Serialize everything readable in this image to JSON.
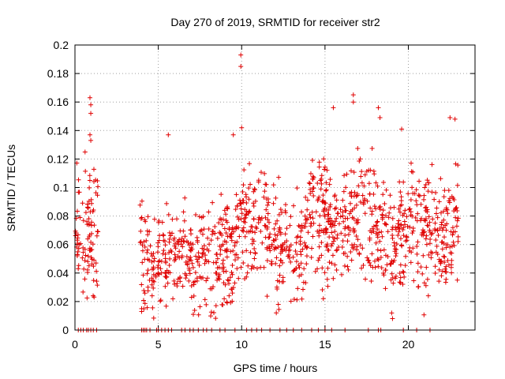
{
  "chart_data": {
    "type": "scatter",
    "title": "Day 270 of 2019, SRMTID for receiver str2",
    "xlabel": "GPS time / hours",
    "ylabel": "SRMTID / TECUs",
    "xlim": [
      0,
      24
    ],
    "ylim": [
      0,
      0.2
    ],
    "grid": true,
    "marker": "+",
    "color": "#e00000",
    "x_ticks": [
      0,
      5,
      10,
      15,
      20
    ],
    "x_tick_labels": [
      "0",
      "5",
      "10",
      "15",
      "20"
    ],
    "y_ticks": [
      0,
      0.02,
      0.04,
      0.06,
      0.08,
      0.1,
      0.12,
      0.14,
      0.16,
      0.18,
      0.2
    ],
    "y_tick_labels": [
      "0",
      "0.02",
      "0.04",
      "0.06",
      "0.08",
      "0.1",
      "0.12",
      "0.14",
      "0.16",
      "0.18",
      "0.2"
    ],
    "segments": [
      {
        "x_start": 0.0,
        "x_end": 1.4,
        "median": 0.065,
        "spread": 0.022,
        "density": 70
      },
      {
        "x_start": 3.9,
        "x_end": 9.6,
        "median": 0.052,
        "spread": 0.018,
        "density": 60
      },
      {
        "x_start": 9.6,
        "x_end": 11.5,
        "median": 0.078,
        "spread": 0.02,
        "density": 60
      },
      {
        "x_start": 11.5,
        "x_end": 14.0,
        "median": 0.058,
        "spread": 0.017,
        "density": 60
      },
      {
        "x_start": 14.0,
        "x_end": 18.5,
        "median": 0.078,
        "spread": 0.02,
        "density": 65
      },
      {
        "x_start": 18.5,
        "x_end": 19.5,
        "median": 0.06,
        "spread": 0.02,
        "density": 60
      },
      {
        "x_start": 19.5,
        "x_end": 23.0,
        "median": 0.07,
        "spread": 0.02,
        "density": 65
      }
    ],
    "notable_points": [
      {
        "x": 0.9,
        "y": 0.163
      },
      {
        "x": 0.95,
        "y": 0.158
      },
      {
        "x": 0.95,
        "y": 0.152
      },
      {
        "x": 0.9,
        "y": 0.137
      },
      {
        "x": 0.95,
        "y": 0.133
      },
      {
        "x": 5.6,
        "y": 0.137
      },
      {
        "x": 9.95,
        "y": 0.193
      },
      {
        "x": 9.95,
        "y": 0.185
      },
      {
        "x": 10.0,
        "y": 0.142
      },
      {
        "x": 9.5,
        "y": 0.137
      },
      {
        "x": 15.5,
        "y": 0.156
      },
      {
        "x": 16.7,
        "y": 0.165
      },
      {
        "x": 16.7,
        "y": 0.16
      },
      {
        "x": 18.2,
        "y": 0.156
      },
      {
        "x": 18.3,
        "y": 0.149
      },
      {
        "x": 19.6,
        "y": 0.141
      },
      {
        "x": 22.5,
        "y": 0.149
      },
      {
        "x": 22.8,
        "y": 0.148
      },
      {
        "x": 19.0,
        "y": 0.012
      },
      {
        "x": 19.05,
        "y": 0.008
      },
      {
        "x": 4.0,
        "y": 0.013
      },
      {
        "x": 4.0,
        "y": 0.015
      },
      {
        "x": 7.1,
        "y": 0.011
      },
      {
        "x": 12.2,
        "y": 0.018
      },
      {
        "x": 14.9,
        "y": 0.022
      },
      {
        "x": 21.2,
        "y": 0.024
      }
    ],
    "zero_points_x": [
      0.2,
      0.35,
      0.5,
      0.7,
      0.8,
      0.95,
      1.1,
      1.3,
      4.0,
      4.1,
      4.2,
      4.3,
      4.5,
      4.9,
      5.0,
      5.2,
      5.4,
      5.6,
      5.8,
      6.4,
      6.6,
      6.9,
      7.1,
      7.4,
      7.7,
      7.9,
      8.2,
      8.7,
      9.0,
      9.6,
      10.3,
      10.6,
      10.9,
      11.2,
      11.7,
      12.3,
      12.7,
      13.1,
      13.6,
      14.2,
      14.6,
      15.0,
      15.4,
      16.2,
      17.6,
      18.2,
      18.35,
      19.7,
      20.5,
      21.3
    ]
  }
}
